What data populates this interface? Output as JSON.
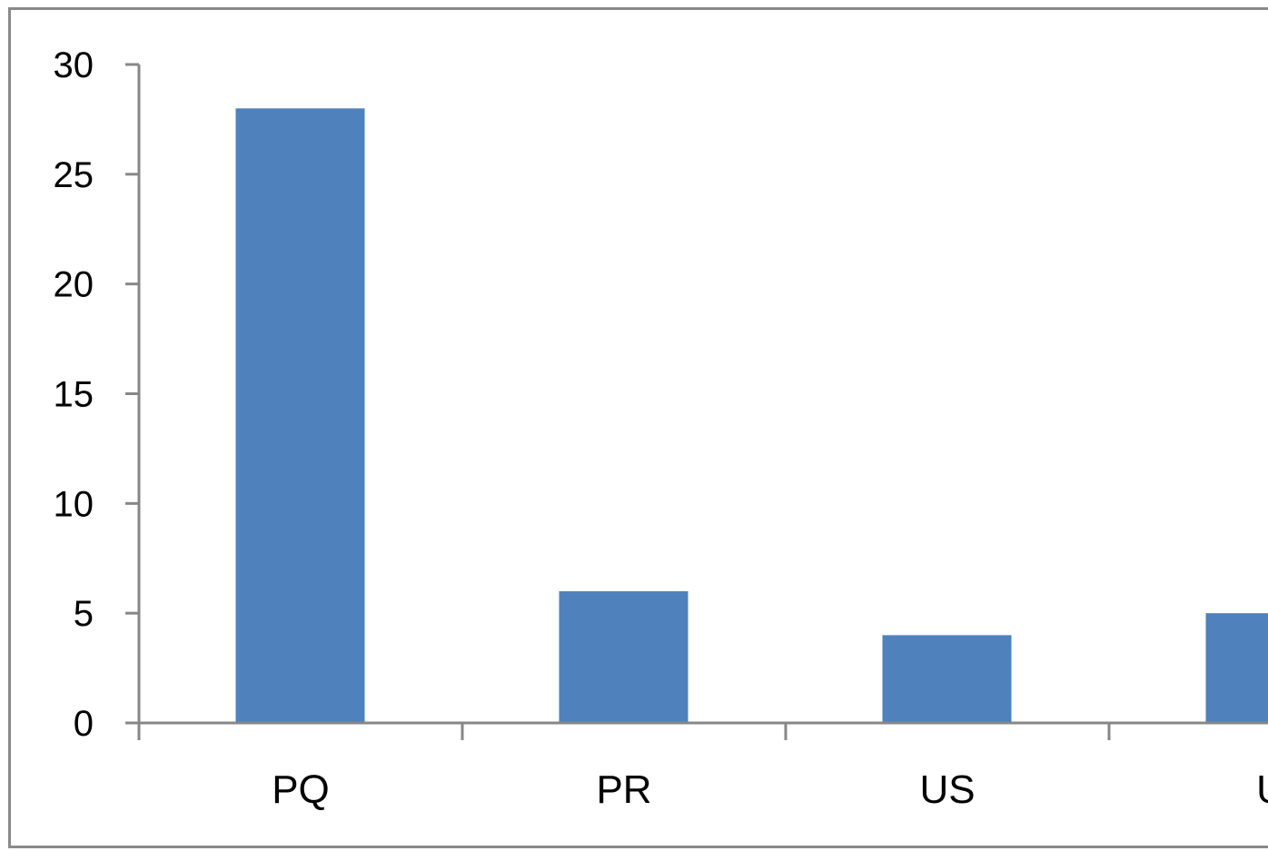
{
  "chart_data": {
    "type": "bar",
    "title": "",
    "xlabel": "",
    "ylabel": "",
    "categories": [
      "PQ",
      "PR",
      "US",
      "U"
    ],
    "values": [
      28,
      6,
      4,
      5
    ],
    "ylim": [
      0,
      30
    ],
    "yticks": [
      "0",
      "5",
      "10",
      "15",
      "20",
      "25",
      "30"
    ],
    "grid": false,
    "legend": "none",
    "colors": {
      "bar": "#4f81bd",
      "axis": "#878787",
      "frame": "#8a8a8a"
    }
  }
}
